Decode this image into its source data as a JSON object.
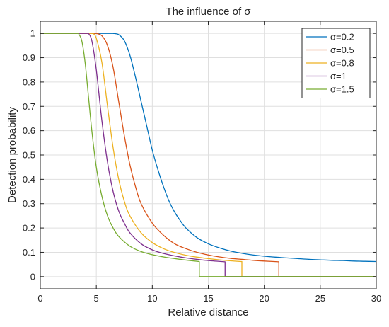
{
  "chart_data": {
    "type": "line",
    "title": "The influence of σ",
    "xlabel": "Relative distance",
    "ylabel": "Detection probability",
    "xlim": [
      0,
      30
    ],
    "ylim": [
      -0.05,
      1.05
    ],
    "grid": true,
    "legend_position": "top-right",
    "x_ticks": [
      0,
      5,
      10,
      15,
      20,
      25,
      30
    ],
    "x_tick_labels": [
      "0",
      "5",
      "10",
      "15",
      "20",
      "25",
      "30"
    ],
    "y_ticks": [
      0,
      0.1,
      0.2,
      0.3,
      0.4,
      0.5,
      0.6,
      0.7,
      0.8,
      0.9,
      1
    ],
    "y_tick_labels": [
      "0",
      "0.1",
      "0.2",
      "0.3",
      "0.4",
      "0.5",
      "0.6",
      "0.7",
      "0.8",
      "0.9",
      "1"
    ],
    "series": [
      {
        "name": "σ=0.2",
        "color": "#0072BD",
        "x": [
          0,
          6.5,
          7.0,
          7.5,
          8.0,
          8.5,
          9.0,
          9.5,
          10.0,
          10.5,
          11.0,
          11.5,
          12.0,
          12.5,
          13.0,
          14.0,
          15.0,
          16.0,
          17.0,
          18.0,
          19.0,
          20.0,
          21.0,
          22.0,
          23.0,
          24.0,
          25.0,
          26.0,
          27.0,
          28.0,
          29.0,
          30.0
        ],
        "y": [
          1.0,
          1.0,
          0.995,
          0.97,
          0.91,
          0.82,
          0.72,
          0.62,
          0.52,
          0.44,
          0.37,
          0.31,
          0.265,
          0.23,
          0.2,
          0.16,
          0.135,
          0.118,
          0.105,
          0.096,
          0.089,
          0.084,
          0.08,
          0.077,
          0.074,
          0.071,
          0.069,
          0.067,
          0.066,
          0.064,
          0.063,
          0.062
        ]
      },
      {
        "name": "σ=0.5",
        "color": "#D95319",
        "x": [
          0,
          5.0,
          5.5,
          6.0,
          6.5,
          7.0,
          7.5,
          8.0,
          8.5,
          9.0,
          10.0,
          11.0,
          12.0,
          13.0,
          14.0,
          15.0,
          16.0,
          17.0,
          18.0,
          19.0,
          20.0,
          21.3,
          21.3,
          30.0
        ],
        "y": [
          1.0,
          1.0,
          0.99,
          0.95,
          0.86,
          0.72,
          0.58,
          0.46,
          0.37,
          0.3,
          0.22,
          0.17,
          0.135,
          0.115,
          0.1,
          0.089,
          0.081,
          0.075,
          0.071,
          0.067,
          0.064,
          0.061,
          0.0,
          0.0
        ]
      },
      {
        "name": "σ=0.8",
        "color": "#EDB120",
        "x": [
          0,
          4.7,
          5.0,
          5.5,
          6.0,
          6.5,
          7.0,
          7.5,
          8.0,
          9.0,
          10.0,
          11.0,
          12.0,
          13.0,
          14.0,
          15.0,
          16.0,
          17.0,
          18.0,
          18.0,
          30.0
        ],
        "y": [
          1.0,
          1.0,
          0.98,
          0.88,
          0.7,
          0.53,
          0.4,
          0.31,
          0.25,
          0.18,
          0.14,
          0.115,
          0.099,
          0.088,
          0.08,
          0.074,
          0.069,
          0.065,
          0.062,
          0.0,
          0.0
        ]
      },
      {
        "name": "σ=1",
        "color": "#7E2F8E",
        "x": [
          0,
          4.3,
          4.6,
          5.0,
          5.5,
          6.0,
          6.5,
          7.0,
          7.5,
          8.0,
          9.0,
          10.0,
          11.0,
          12.0,
          13.0,
          14.0,
          15.0,
          16.5,
          16.5,
          30.0
        ],
        "y": [
          1.0,
          1.0,
          0.97,
          0.85,
          0.64,
          0.47,
          0.35,
          0.27,
          0.22,
          0.18,
          0.135,
          0.11,
          0.095,
          0.085,
          0.077,
          0.071,
          0.066,
          0.061,
          0.0,
          0.0
        ]
      },
      {
        "name": "σ=1.5",
        "color": "#77AC30",
        "x": [
          0,
          3.4,
          3.7,
          4.0,
          4.3,
          4.6,
          5.0,
          5.5,
          6.0,
          6.5,
          7.0,
          8.0,
          9.0,
          10.0,
          11.0,
          12.0,
          13.0,
          14.2,
          14.2,
          30.0
        ],
        "y": [
          1.0,
          1.0,
          0.97,
          0.88,
          0.74,
          0.6,
          0.45,
          0.33,
          0.25,
          0.2,
          0.165,
          0.125,
          0.103,
          0.09,
          0.081,
          0.074,
          0.068,
          0.062,
          0.0,
          0.0
        ]
      }
    ]
  }
}
